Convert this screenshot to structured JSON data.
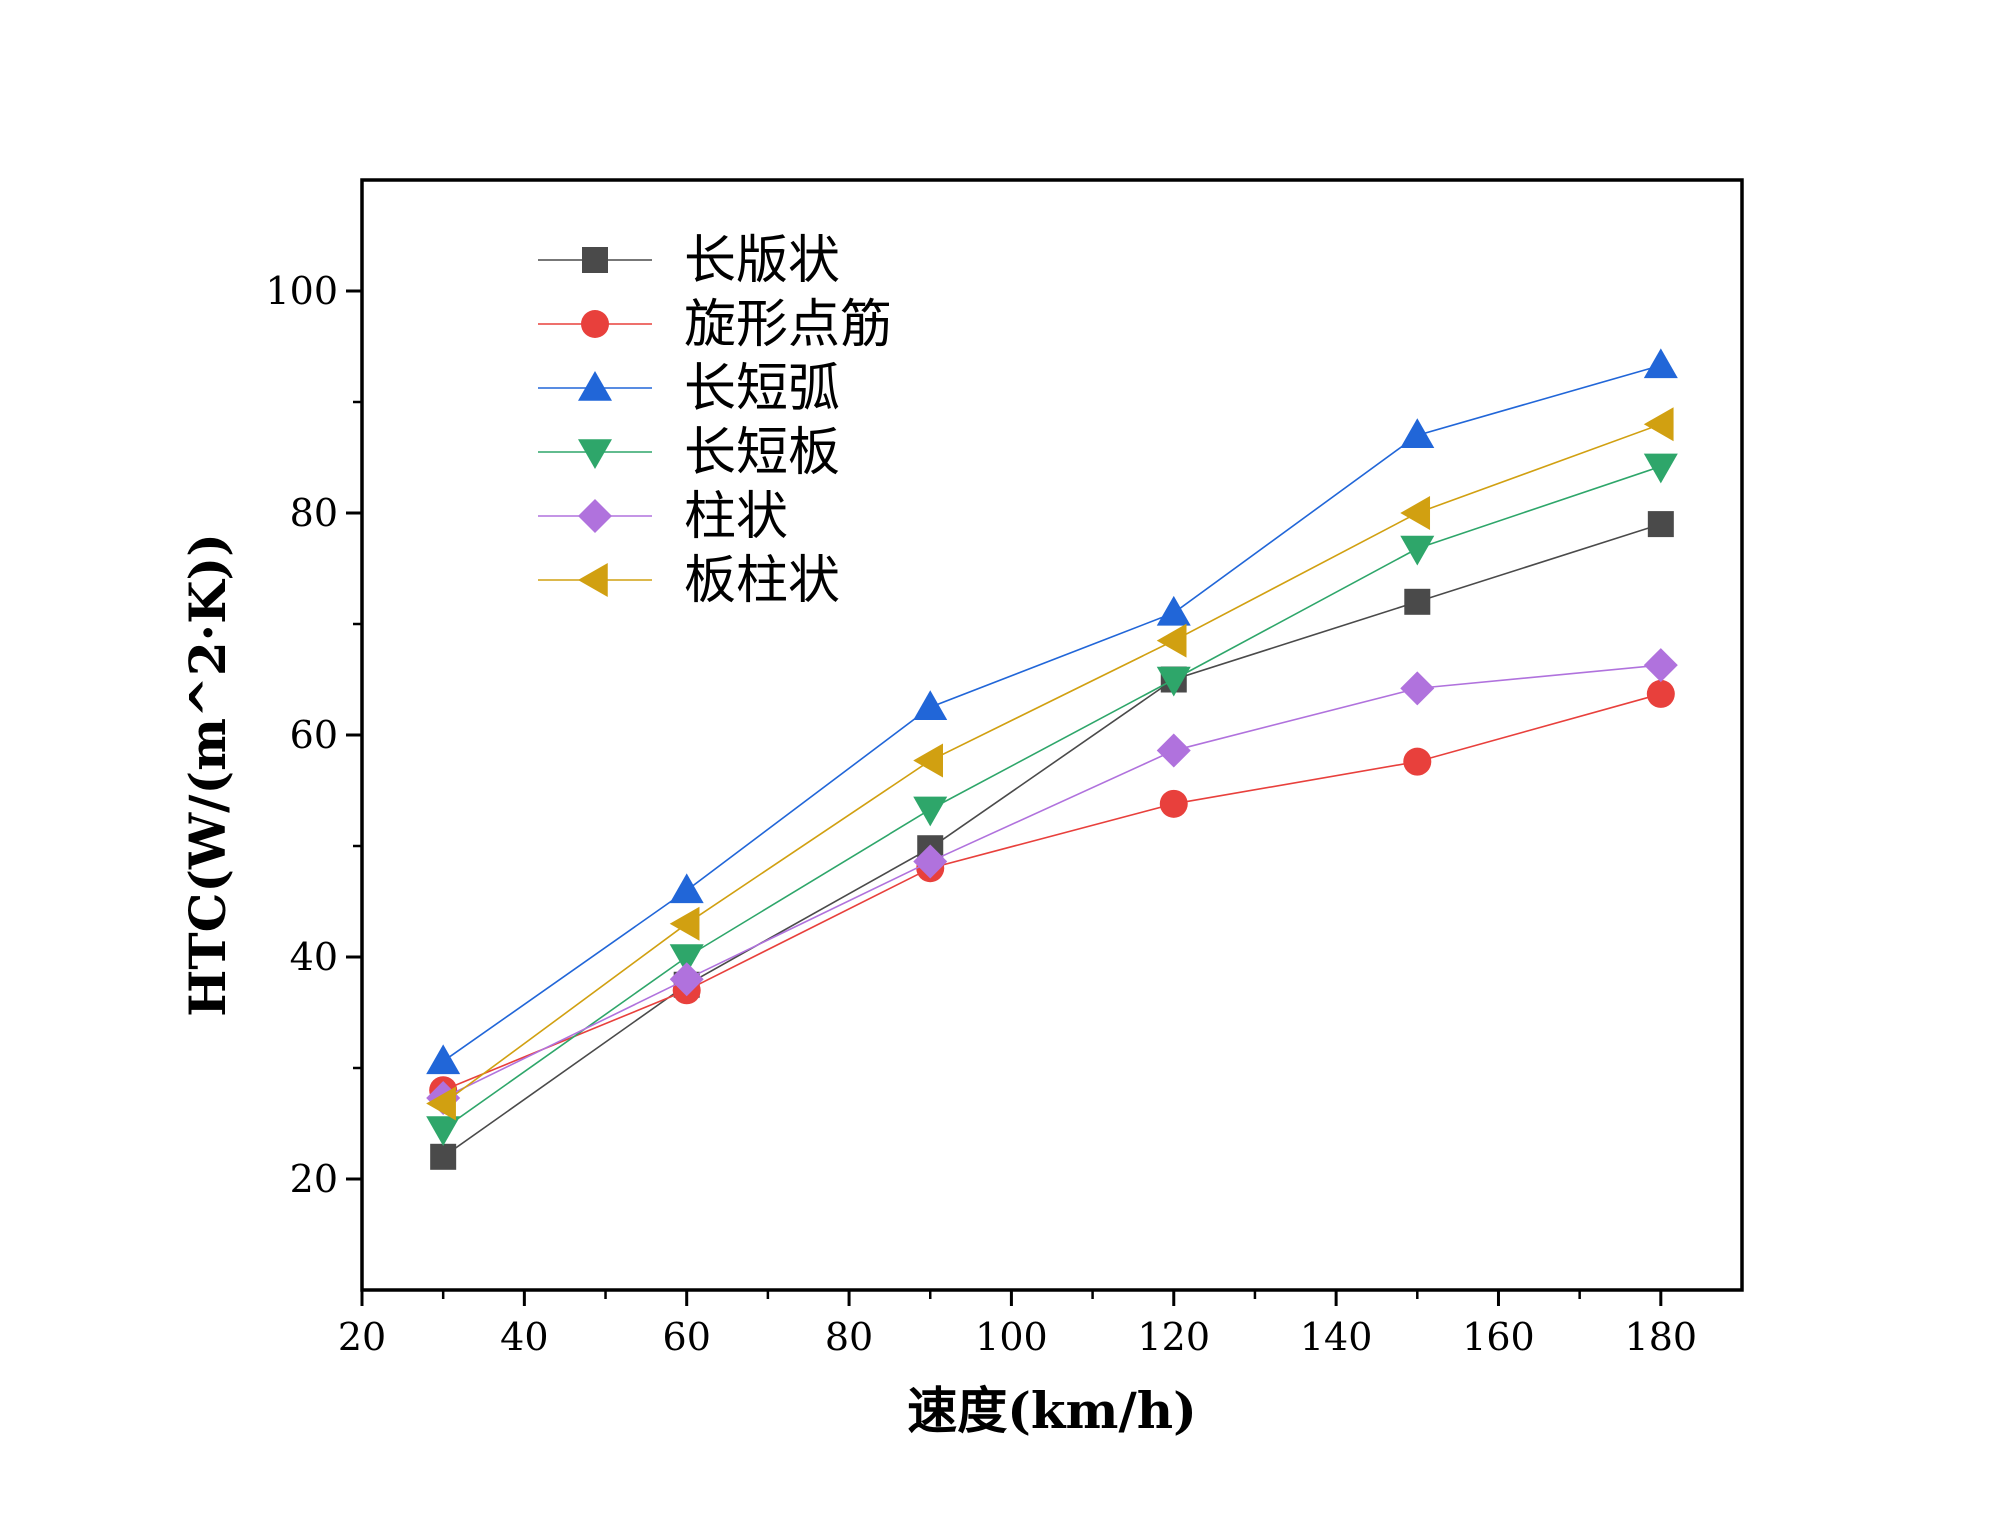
{
  "chart_data": {
    "type": "line",
    "title": "",
    "xlabel": "速度(km/h)",
    "ylabel": "HTC(W/(m^2·K))",
    "xlim": [
      20,
      190
    ],
    "ylim": [
      10,
      110
    ],
    "x": [
      30,
      60,
      90,
      120,
      150,
      180
    ],
    "x_ticks": [
      20,
      40,
      60,
      80,
      100,
      120,
      140,
      160,
      180
    ],
    "y_ticks": [
      20,
      40,
      60,
      80,
      100
    ],
    "x_tick_labels": [
      "20",
      "40",
      "60",
      "80",
      "100",
      "120",
      "140",
      "160",
      "180"
    ],
    "y_tick_labels": [
      "20",
      "40",
      "60",
      "80",
      "100"
    ],
    "legend_position": "top-left",
    "grid": false,
    "series": [
      {
        "name": "长版状",
        "marker": "square",
        "color": "#4a4a4a",
        "values": [
          22.0,
          37.5,
          49.8,
          65.0,
          72.0,
          79.0
        ]
      },
      {
        "name": "旋形点筋",
        "marker": "circle",
        "color": "#e8403c",
        "values": [
          28.0,
          37.0,
          48.0,
          53.8,
          57.6,
          63.7
        ]
      },
      {
        "name": "长短弧",
        "marker": "triangle-up",
        "color": "#2166d8",
        "values": [
          30.6,
          46.0,
          62.5,
          71.0,
          87.0,
          93.3
        ]
      },
      {
        "name": "长短板",
        "marker": "triangle-down",
        "color": "#2ea66a",
        "values": [
          24.5,
          40.0,
          53.3,
          65.0,
          76.8,
          84.2
        ]
      },
      {
        "name": "柱状",
        "marker": "diamond",
        "color": "#b072dd",
        "values": [
          27.3,
          38.0,
          48.6,
          58.6,
          64.2,
          66.3
        ]
      },
      {
        "name": "板柱状",
        "marker": "triangle-left",
        "color": "#d1a011",
        "values": [
          26.8,
          43.0,
          57.7,
          68.5,
          80.0,
          88.0
        ]
      }
    ]
  }
}
